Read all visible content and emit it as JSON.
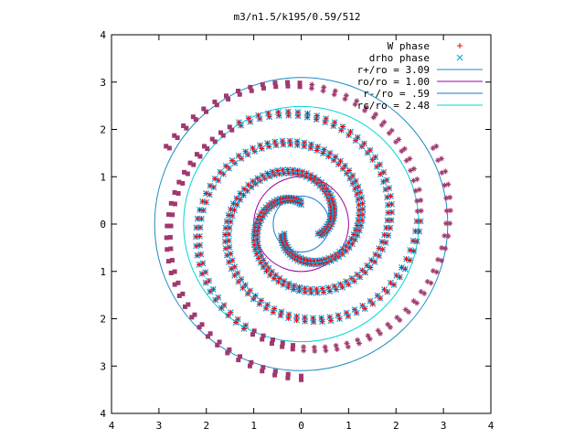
{
  "chart_data": {
    "type": "scatter",
    "title": "m3/n1.5/k195/0.59/512",
    "xlabel": "",
    "ylabel": "",
    "xlim": [
      -4,
      4
    ],
    "ylim": [
      -4,
      4
    ],
    "x_tick_values": [
      -4,
      -3,
      -2,
      -1,
      0,
      1,
      2,
      3,
      4
    ],
    "x_tick_labels": [
      "4",
      "3",
      "2",
      "1",
      "0",
      "1",
      "2",
      "3",
      "4"
    ],
    "y_tick_values": [
      -4,
      -3,
      -2,
      -1,
      0,
      1,
      2,
      3,
      4
    ],
    "y_tick_labels": [
      "4",
      "3",
      "2",
      "1",
      "0",
      "1",
      "2",
      "3",
      "4"
    ],
    "grid": false,
    "legend_position": "top-right",
    "colors": {
      "w_phase": "#ff0000",
      "drho_phase": "#00a0e0",
      "r_plus": "#1a8cc0",
      "r_o": "#a000a0",
      "r_minus": "#1a78d8",
      "r_c": "#00d8d8",
      "extra_square": "#a03870",
      "extra_star": "#a03870"
    },
    "series": [
      {
        "name": "W phase",
        "marker": "+",
        "color_key": "w_phase",
        "spiral": {
          "arms": 3,
          "r_start": 0.45,
          "r_end": 3.25,
          "theta_start_deg": [
            90,
            210,
            330
          ],
          "winding_deg": 540
        }
      },
      {
        "name": "drho phase",
        "marker": "x",
        "color_key": "drho_phase",
        "spiral": {
          "arms": 3,
          "r_start": 0.45,
          "r_end": 3.25,
          "theta_start_deg": [
            90,
            210,
            330
          ],
          "winding_deg": 540
        }
      }
    ],
    "circles": [
      {
        "name": "r+/ro = 3.09",
        "radius": 3.09,
        "color_key": "r_plus"
      },
      {
        "name": "ro/ro = 1.00",
        "radius": 1.0,
        "color_key": "r_o"
      },
      {
        "name": "r-/ro = .59",
        "radius": 0.59,
        "color_key": "r_minus"
      },
      {
        "name": "rc/ro = 2.48",
        "radius": 2.48,
        "color_key": "r_c"
      }
    ],
    "legend": [
      {
        "label": "W phase",
        "kind": "point",
        "marker": "+",
        "color_key": "w_phase"
      },
      {
        "label": "drho phase",
        "kind": "point",
        "marker": "x",
        "color_key": "drho_phase"
      },
      {
        "label": "r+/ro = 3.09",
        "kind": "line",
        "color_key": "r_plus"
      },
      {
        "label": "ro/ro = 1.00",
        "kind": "line",
        "color_key": "r_o"
      },
      {
        "label": "r-/ro = .59",
        "kind": "line",
        "color_key": "r_minus"
      },
      {
        "label": "rc/ro = 2.48",
        "kind": "line",
        "color_key": "r_c"
      }
    ]
  }
}
